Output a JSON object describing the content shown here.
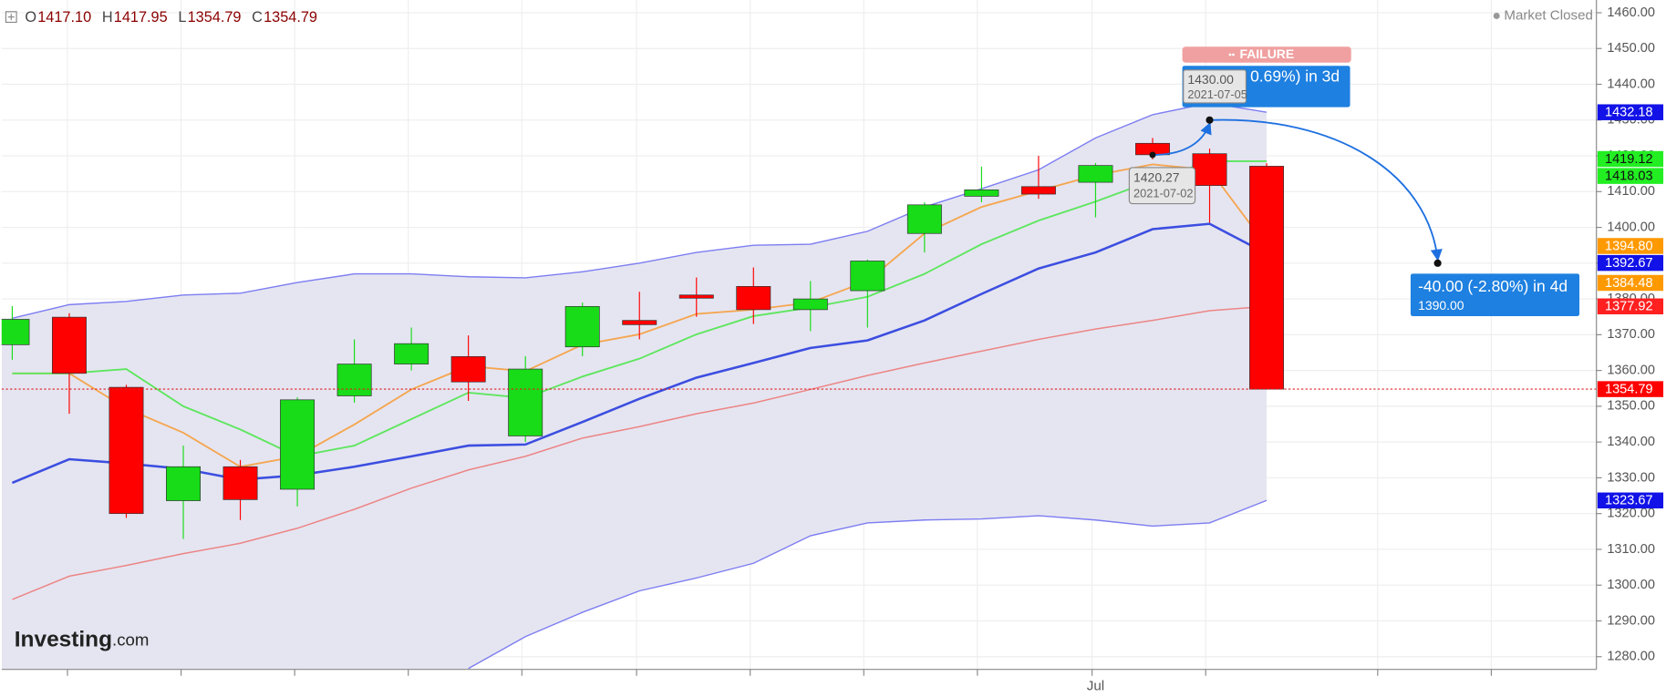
{
  "chart_data": {
    "type": "candlestick",
    "ohlc_legend": [
      {
        "key": "O",
        "value": 1417.1,
        "label": "1417.10"
      },
      {
        "key": "H",
        "value": 1417.95
      },
      {
        "key": "L",
        "value": 1354.79
      },
      {
        "key": "C",
        "value": 1354.79
      }
    ],
    "status": "Market Closed",
    "logo": {
      "name": "Investing",
      "suffix": ".com"
    },
    "categories": [
      null,
      null,
      null,
      null,
      null,
      null,
      null,
      null,
      null,
      null,
      null,
      null,
      null,
      null,
      null,
      null,
      null,
      null,
      null,
      "Jul",
      null,
      null,
      null
    ],
    "open": [
      1367.2,
      1374.9,
      1355.3,
      1323.6,
      1333.1,
      1326.8,
      1352.9,
      1361.8,
      1363.9,
      1341.7,
      1366.6,
      1374.0,
      1381.1,
      1383.5,
      1377.0,
      1382.3,
      1398.3,
      1408.7,
      1411.4,
      1412.6,
      1423.5,
      1420.6,
      1417.1
    ],
    "high": [
      1378,
      1376,
      1356,
      1339,
      1335,
      1352.5,
      1368.7,
      1372,
      1369.8,
      1364,
      1379,
      1382,
      1386,
      1388.8,
      1385,
      1391,
      1407,
      1417,
      1420,
      1418,
      1425,
      1422,
      1417.95
    ],
    "low": [
      1363,
      1347.9,
      1318.8,
      1312.9,
      1318.2,
      1322,
      1351,
      1360,
      1351.5,
      1340,
      1364,
      1368.7,
      1375,
      1373,
      1371,
      1372,
      1393,
      1407,
      1408,
      1402.8,
      1419,
      1401.3,
      1354.79
    ],
    "close": [
      1374.3,
      1359.2,
      1320.0,
      1333.1,
      1323.9,
      1351.8,
      1361.8,
      1367.5,
      1356.8,
      1360.4,
      1377.9,
      1372.8,
      1380.2,
      1377.0,
      1380.0,
      1390.6,
      1406.3,
      1410.5,
      1409.3,
      1417.3,
      1420.3,
      1411.7,
      1354.79
    ],
    "up_color": "#17dc17",
    "down_color": "#ff0000",
    "bands": {
      "upper": [
        1374.6,
        1378.4,
        1379.3,
        1381.1,
        1381.6,
        1384.6,
        1387.0,
        1387.0,
        1386.2,
        1385.9,
        1387.6,
        1390.0,
        1393.0,
        1395.0,
        1395.3,
        1398.9,
        1405.7,
        1410.8,
        1416.1,
        1425.0,
        1431.5,
        1434.8,
        1432.18
      ],
      "middle": [
        1328.6,
        1335.2,
        1334.0,
        1332.5,
        1329.5,
        1330.7,
        1333.1,
        1336.0,
        1339.0,
        1339.3,
        1345.6,
        1352.1,
        1358.0,
        1362.1,
        1366.3,
        1368.4,
        1374.0,
        1381.4,
        1388.5,
        1393.0,
        1399.5,
        1401.0,
        1392.67
      ],
      "lower": [
        null,
        null,
        null,
        null,
        null,
        null,
        null,
        null,
        1276.7,
        1285.6,
        1292.4,
        1298.4,
        1302.0,
        1306.1,
        1313.8,
        1317.4,
        1318.2,
        1318.5,
        1319.4,
        1318.2,
        1316.5,
        1317.4,
        1323.67
      ],
      "color": "#7d7df2",
      "middle_color": "#3c4ee0",
      "fill": "#e5e5f1"
    },
    "series": [
      {
        "color": "#ec8585",
        "values": [
          1296.0,
          1302.5,
          1305.5,
          1308.8,
          1311.7,
          1315.9,
          1321.2,
          1327.1,
          1332.2,
          1336.0,
          1341.1,
          1344.3,
          1347.9,
          1350.9,
          1354.7,
          1358.6,
          1362.1,
          1365.4,
          1368.7,
          1371.6,
          1374.0,
          1376.7,
          1377.92
        ]
      },
      {
        "color": "#f5a650",
        "values": [
          1359.2,
          1359.2,
          1349.4,
          1342.6,
          1333.1,
          1336.0,
          1344.9,
          1354.7,
          1361.2,
          1359.8,
          1367.2,
          1370.1,
          1375.8,
          1377.0,
          1379.0,
          1385.0,
          1398.3,
          1405.7,
          1410.2,
          1414.6,
          1417.6,
          1416.1,
          1394.8
        ]
      },
      {
        "color": "#5ee65e",
        "values": [
          1359.2,
          1359.2,
          1360.4,
          1350.0,
          1343.5,
          1336.0,
          1339.0,
          1346.4,
          1353.8,
          1352.3,
          1358.3,
          1363.3,
          1370.1,
          1375.2,
          1377.6,
          1380.6,
          1387.0,
          1395.3,
          1401.9,
          1407.2,
          1413.1,
          1418.5,
          1418.5
        ]
      }
    ],
    "ylim": [
      1276.44,
      1463.56
    ],
    "yticks": [
      {
        "value": 1280,
        "label": "1280.00"
      },
      {
        "value": 1290,
        "label": "1290.00"
      },
      {
        "value": 1300,
        "label": "1300.00"
      },
      {
        "value": 1310,
        "label": "1310.00"
      },
      {
        "value": 1320,
        "label": "1320.00"
      },
      {
        "value": 1330,
        "label": "1330.00"
      },
      {
        "value": 1340,
        "label": "1340.00"
      },
      {
        "value": 1350,
        "label": "1350.00"
      },
      {
        "value": 1360,
        "label": "1360.00"
      },
      {
        "value": 1370,
        "label": "1370.00"
      },
      {
        "value": 1380,
        "label": "1380.00"
      },
      {
        "value": 1390,
        "label": "1390.00"
      },
      {
        "value": 1400,
        "label": "1400.00"
      },
      {
        "value": 1410,
        "label": "1410.00"
      },
      {
        "value": 1420,
        "label": "1420.00"
      },
      {
        "value": 1430,
        "label": "1430.00"
      },
      {
        "value": 1440,
        "label": "1440.00"
      },
      {
        "value": 1450,
        "label": "1450.00"
      },
      {
        "value": 1460,
        "label": "1460.00"
      }
    ],
    "grid": true,
    "last_price_line": {
      "value": 1354.79,
      "color": "#e02020"
    },
    "price_labels": [
      {
        "value": 1432.18,
        "color": "#1212e8",
        "text_color": "#ffffff"
      },
      {
        "value": 1419.12,
        "color": "#22ee22",
        "text_color": "#111111"
      },
      {
        "value": 1418.03,
        "color": "#22ee22",
        "text_color": "#111111"
      },
      {
        "value": 1394.8,
        "label": "1394.80",
        "color": "#ff9900",
        "text_color": "#ffffff"
      },
      {
        "value": 1392.67,
        "color": "#1212e8",
        "text_color": "#ffffff"
      },
      {
        "value": 1384.48,
        "color": "#ff9900",
        "text_color": "#ffffff"
      },
      {
        "value": 1377.92,
        "color": "#ff2020",
        "text_color": "#ffffff"
      },
      {
        "value": 1354.79,
        "color": "#ff0000",
        "text_color": "#ffffff"
      },
      {
        "value": 1323.67,
        "color": "#1212e8",
        "text_color": "#ffffff"
      }
    ],
    "annotations": {
      "failure": "FAILURE",
      "projection_up": "0.69%) in 3d",
      "start_point": {
        "value": 1420.27,
        "label": "1420.27",
        "date": "2021-07-02"
      },
      "peak_point": {
        "value": 1430,
        "label": "1430.00",
        "date": "2021-07-05"
      },
      "projection_down": {
        "text": "-40.00 (-2.80%) in 4d",
        "value": 1390,
        "label": "1390.00"
      }
    }
  }
}
